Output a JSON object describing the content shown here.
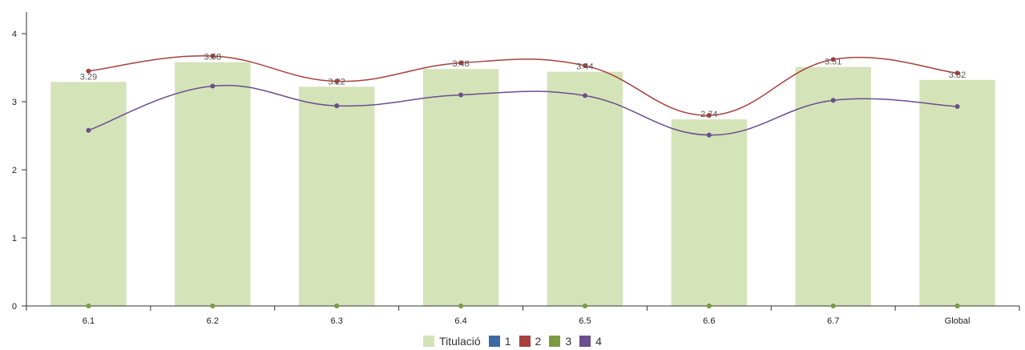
{
  "chart_data": {
    "type": "bar",
    "categories": [
      "6.1",
      "6.2",
      "6.3",
      "6.4",
      "6.5",
      "6.6",
      "6.7",
      "Global"
    ],
    "ylim": [
      0,
      4
    ],
    "yticks": [
      0,
      1,
      2,
      3,
      4
    ],
    "grid": false,
    "legend_position": "bottom",
    "series": [
      {
        "name": "Titulació",
        "kind": "bar",
        "color": "#d5e3b9",
        "values": [
          3.29,
          3.58,
          3.22,
          3.48,
          3.44,
          2.74,
          3.51,
          3.32
        ],
        "labels": [
          "3.29",
          "3.58",
          "3.22",
          "3.48",
          "3.44",
          "2.74",
          "3.51",
          "3.32"
        ]
      },
      {
        "name": "1",
        "kind": "line",
        "color": "#3c6aa5",
        "values": [
          0,
          0,
          0,
          0,
          0,
          0,
          0,
          0
        ]
      },
      {
        "name": "2",
        "kind": "line",
        "color": "#a6403f",
        "values": [
          3.45,
          3.67,
          3.3,
          3.57,
          3.53,
          2.8,
          3.62,
          3.42
        ]
      },
      {
        "name": "3",
        "kind": "line",
        "color": "#7d9c3f",
        "values": [
          0,
          0,
          0,
          0,
          0,
          0,
          0,
          0
        ]
      },
      {
        "name": "4",
        "kind": "line",
        "color": "#6a4e8d",
        "values": [
          2.58,
          3.23,
          2.94,
          3.1,
          3.09,
          2.51,
          3.02,
          2.93
        ]
      }
    ]
  }
}
